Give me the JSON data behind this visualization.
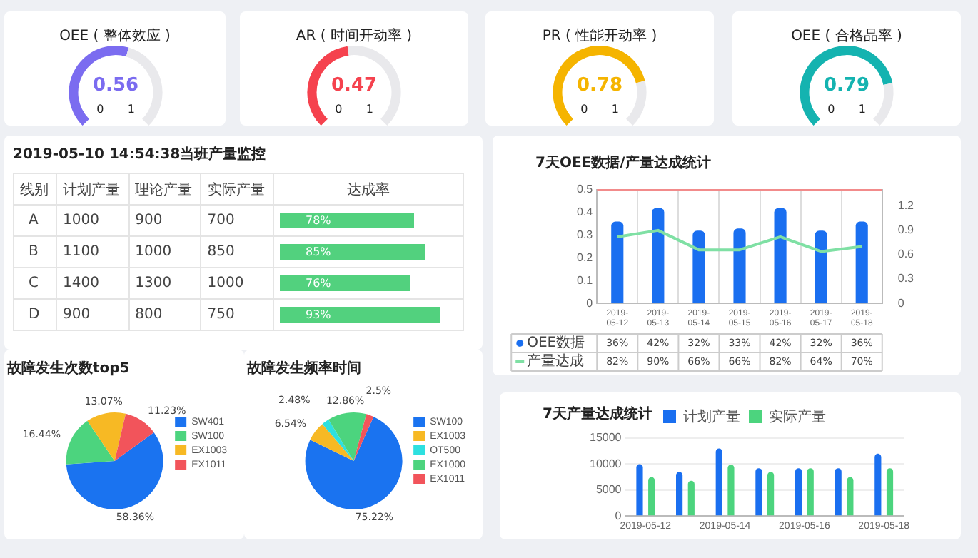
{
  "chart_data": [
    {
      "type": "donut",
      "title": "OEE ( 整体效应 )",
      "categories": [
        null,
        null
      ],
      "values": [
        0.56,
        0.44
      ],
      "colors": [
        "#7b6cf0",
        "#e9e9ec"
      ],
      "value_labels": [
        "0.56",
        null
      ],
      "annotations": [
        "0",
        "1"
      ]
    },
    {
      "type": "donut",
      "title": "AR ( 时间开动率 )",
      "categories": [
        null,
        null
      ],
      "values": [
        0.47,
        0.53
      ],
      "colors": [
        "#f5424e",
        "#e9e9ec"
      ],
      "value_labels": [
        "0.47",
        null
      ],
      "annotations": [
        "0",
        "1"
      ]
    },
    {
      "type": "donut",
      "title": "PR ( 性能开动率 )",
      "categories": [
        null,
        null
      ],
      "values": [
        0.78,
        0.22
      ],
      "colors": [
        "#f5b400",
        "#e9e9ec"
      ],
      "value_labels": [
        "0.78",
        null
      ],
      "annotations": [
        "0",
        "1"
      ]
    },
    {
      "type": "donut",
      "title": "OEE ( 合格品率 )",
      "categories": [
        null,
        null
      ],
      "values": [
        0.79,
        0.21
      ],
      "colors": [
        "#14b3b0",
        "#e9e9ec"
      ],
      "value_labels": [
        "0.79",
        null
      ],
      "annotations": [
        "0",
        "1"
      ]
    },
    {
      "type": "other",
      "title": "2019-05-10 14:54:38当班产量监控",
      "xlabel": "线别",
      "data_labels": true,
      "categories": [
        "A",
        "B",
        "C",
        "D"
      ],
      "series": [
        {
          "name": "计划产量",
          "values": [
            1000,
            1100,
            1400,
            900
          ]
        },
        {
          "name": "理论产量",
          "values": [
            900,
            1000,
            1300,
            800
          ]
        },
        {
          "name": "实际产量",
          "values": [
            700,
            850,
            1000,
            750
          ]
        },
        {
          "name": "达成率",
          "type": "bar",
          "color": "#52d17e",
          "values": [
            78,
            85,
            76,
            93
          ],
          "value_labels": [
            "78%",
            "85%",
            "76%",
            "93%"
          ]
        }
      ]
    },
    {
      "type": "bar",
      "title": "7天OEE数据/产量达成统计",
      "categories": [
        "2019-05-12",
        "2019-05-13",
        "2019-05-14",
        "2019-05-15",
        "2019-05-16",
        "2019-05-17",
        "2019-05-18"
      ],
      "series": [
        {
          "name": "OEE数据",
          "type": "bar",
          "color": "#1a6ff0",
          "values": [
            0.36,
            0.42,
            0.32,
            0.33,
            0.42,
            0.32,
            0.36
          ],
          "value_labels": [
            "36%",
            "42%",
            "32%",
            "33%",
            "42%",
            "32%",
            "36%"
          ]
        },
        {
          "name": "产量达成",
          "type": "line",
          "axis": "y2",
          "color": "#7fe0a4",
          "values": [
            0.82,
            0.9,
            0.66,
            0.66,
            0.82,
            0.64,
            0.7
          ],
          "value_labels": [
            "82%",
            "90%",
            "66%",
            "66%",
            "82%",
            "64%",
            "70%"
          ]
        }
      ],
      "ylim": [
        0,
        0.5
      ],
      "yticks": [
        0,
        0.1,
        0.2,
        0.3,
        0.4,
        0.5
      ],
      "y2lim": [
        0,
        1.4
      ],
      "y2ticks": [
        0,
        0.3,
        0.6,
        0.9,
        1.2
      ],
      "ref_lines": [
        {
          "axis": "y",
          "value": 0.5,
          "color": "#f28b8b"
        }
      ],
      "legend": "bottom",
      "marker": "none"
    },
    {
      "type": "pie",
      "title": "故障发生次数top5",
      "categories": [
        "SW401",
        "SW100",
        "EX1003",
        "EX1011"
      ],
      "values": [
        58.36,
        16.44,
        13.07,
        11.23
      ],
      "colors": [
        "#1a73f0",
        "#4cd47e",
        "#f7b924",
        "#f2545b"
      ],
      "value_labels": [
        "58.36%",
        "16.44%",
        "13.07%",
        "11.23%"
      ],
      "legend": "right"
    },
    {
      "type": "pie",
      "title": "故障发生频率时间",
      "categories": [
        "SW100",
        "EX1003",
        "OT500",
        "EX1000",
        "EX1011"
      ],
      "values": [
        75.22,
        6.54,
        2.48,
        12.86,
        2.5
      ],
      "colors": [
        "#1a73f0",
        "#f7b924",
        "#2de0e0",
        "#4cd47e",
        "#f2545b"
      ],
      "value_labels": [
        "75.22%",
        "6.54%",
        "2.48%",
        "12.86%",
        "2.5%"
      ],
      "legend": "right"
    },
    {
      "type": "bar",
      "title": "7天产量达成统计",
      "categories": [
        "2019-05-12",
        null,
        "2019-05-14",
        null,
        "2019-05-16",
        null,
        "2019-05-18"
      ],
      "series": [
        {
          "name": "计划产量",
          "color": "#1a6ff0",
          "values": [
            10000,
            8500,
            13000,
            9200,
            9200,
            9200,
            12000
          ]
        },
        {
          "name": "实际产量",
          "color": "#4cd47e",
          "values": [
            7500,
            6800,
            9900,
            8500,
            9200,
            7500,
            9200
          ]
        }
      ],
      "ylim": [
        0,
        15000
      ],
      "yticks": [
        0,
        5000,
        10000,
        15000
      ],
      "grid": "y",
      "legend": "top"
    }
  ]
}
